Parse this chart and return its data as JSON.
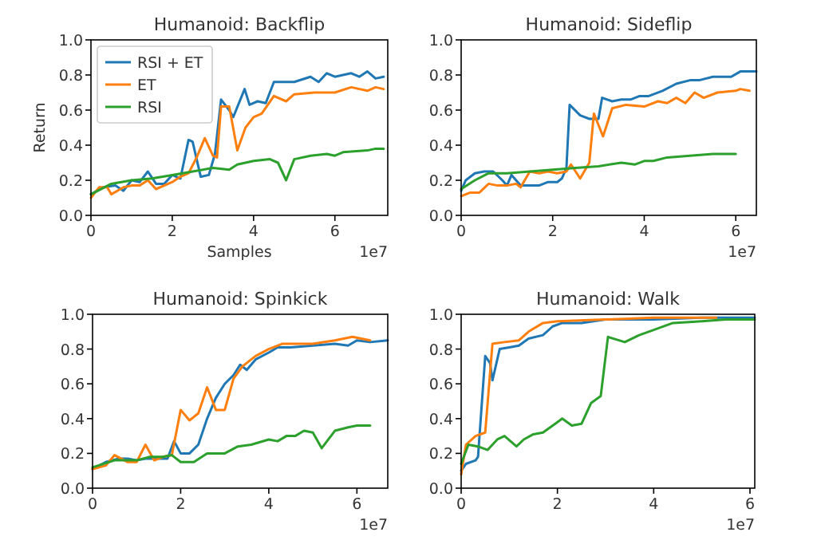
{
  "chart_data": [
    {
      "type": "line",
      "title": "Humanoid: Backflip",
      "xlabel": "Samples",
      "ylabel": "Return",
      "xlim": [
        0,
        7.3
      ],
      "xticks": [
        0,
        2,
        4,
        6
      ],
      "ylim": [
        0,
        1
      ],
      "yticks": [
        {
          "value": 0,
          "label": "0.0"
        },
        {
          "value": 0.2,
          "label": "0.2"
        },
        {
          "value": 0.4,
          "label": "0.4"
        },
        {
          "value": 0.6,
          "label": "0.6"
        },
        {
          "value": 0.8,
          "label": "0.8"
        },
        {
          "value": 1,
          "label": "1.0"
        }
      ],
      "grid": false,
      "legend": "top left",
      "annotations": [
        "1e7"
      ],
      "series": [
        {
          "name": "RSI + ET",
          "color": "#1f77b4",
          "x": [
            0,
            0.3,
            0.6,
            0.8,
            1.0,
            1.2,
            1.4,
            1.6,
            1.8,
            2.0,
            2.2,
            2.4,
            2.5,
            2.7,
            2.9,
            3.05,
            3.2,
            3.4,
            3.5,
            3.78,
            3.9,
            4.1,
            4.3,
            4.5,
            5.0,
            5.4,
            5.6,
            5.8,
            6.0,
            6.4,
            6.6,
            6.8,
            7.0,
            7.2
          ],
          "values": [
            0.12,
            0.16,
            0.17,
            0.14,
            0.2,
            0.19,
            0.25,
            0.18,
            0.18,
            0.23,
            0.21,
            0.43,
            0.42,
            0.22,
            0.23,
            0.35,
            0.66,
            0.6,
            0.56,
            0.72,
            0.63,
            0.65,
            0.64,
            0.76,
            0.76,
            0.79,
            0.76,
            0.81,
            0.79,
            0.81,
            0.79,
            0.82,
            0.78,
            0.79
          ]
        },
        {
          "name": "ET",
          "color": "#ff7f0e",
          "x": [
            0,
            0.2,
            0.4,
            0.5,
            0.8,
            1.0,
            1.2,
            1.4,
            1.6,
            1.8,
            2.0,
            2.2,
            2.4,
            2.6,
            2.8,
            3.0,
            3.1,
            3.2,
            3.4,
            3.6,
            3.8,
            4.0,
            4.2,
            4.5,
            4.8,
            5.0,
            5.5,
            6.0,
            6.4,
            6.8,
            7.0,
            7.2
          ],
          "values": [
            0.1,
            0.16,
            0.16,
            0.12,
            0.16,
            0.17,
            0.17,
            0.2,
            0.15,
            0.17,
            0.19,
            0.22,
            0.24,
            0.33,
            0.44,
            0.34,
            0.33,
            0.62,
            0.62,
            0.37,
            0.5,
            0.56,
            0.58,
            0.68,
            0.65,
            0.69,
            0.7,
            0.7,
            0.73,
            0.71,
            0.73,
            0.72
          ]
        },
        {
          "name": "RSI",
          "color": "#2ca02c",
          "x": [
            0,
            0.5,
            1,
            1.5,
            2,
            2.5,
            3,
            3.4,
            3.6,
            4,
            4.4,
            4.6,
            4.8,
            5.0,
            5.4,
            5.8,
            6.0,
            6.2,
            6.8,
            7.0,
            7.2
          ],
          "values": [
            0.12,
            0.18,
            0.2,
            0.21,
            0.23,
            0.25,
            0.27,
            0.26,
            0.29,
            0.31,
            0.32,
            0.3,
            0.2,
            0.32,
            0.34,
            0.35,
            0.34,
            0.36,
            0.37,
            0.38,
            0.38
          ]
        }
      ]
    },
    {
      "type": "line",
      "title": "Humanoid: Sideflip",
      "xlim": [
        0,
        6.45
      ],
      "xticks": [
        0,
        2,
        4,
        6
      ],
      "ylim": [
        0,
        1
      ],
      "yticks": [
        {
          "value": 0,
          "label": "0.0"
        },
        {
          "value": 0.2,
          "label": "0.2"
        },
        {
          "value": 0.4,
          "label": "0.4"
        },
        {
          "value": 0.6,
          "label": "0.6"
        },
        {
          "value": 0.8,
          "label": "0.8"
        },
        {
          "value": 1,
          "label": "1.0"
        }
      ],
      "grid": false,
      "legend": false,
      "annotations": [
        "1e7"
      ],
      "series": [
        {
          "color": "#1f77b4",
          "x": [
            0,
            0.1,
            0.3,
            0.5,
            0.7,
            0.9,
            1.0,
            1.1,
            1.3,
            1.5,
            1.7,
            1.9,
            2.1,
            2.2,
            2.3,
            2.37,
            2.6,
            2.8,
            3.0,
            3.08,
            3.3,
            3.5,
            3.7,
            3.9,
            4.1,
            4.4,
            4.7,
            5.0,
            5.2,
            5.5,
            5.9,
            6.1,
            6.45
          ],
          "values": [
            0.14,
            0.2,
            0.24,
            0.25,
            0.25,
            0.2,
            0.17,
            0.23,
            0.17,
            0.17,
            0.17,
            0.19,
            0.19,
            0.21,
            0.27,
            0.63,
            0.57,
            0.55,
            0.55,
            0.67,
            0.65,
            0.66,
            0.66,
            0.68,
            0.68,
            0.71,
            0.75,
            0.77,
            0.77,
            0.79,
            0.79,
            0.82,
            0.82
          ]
        },
        {
          "color": "#ff7f0e",
          "x": [
            0,
            0.2,
            0.4,
            0.6,
            0.8,
            1.0,
            1.2,
            1.3,
            1.5,
            1.7,
            1.9,
            2.1,
            2.3,
            2.4,
            2.6,
            2.8,
            2.9,
            3.1,
            3.3,
            3.6,
            4.0,
            4.3,
            4.5,
            4.7,
            4.9,
            5.1,
            5.3,
            5.6,
            6.0,
            6.1,
            6.3
          ],
          "values": [
            0.11,
            0.13,
            0.13,
            0.18,
            0.17,
            0.17,
            0.18,
            0.16,
            0.25,
            0.24,
            0.25,
            0.24,
            0.25,
            0.29,
            0.21,
            0.3,
            0.58,
            0.45,
            0.61,
            0.63,
            0.62,
            0.65,
            0.64,
            0.67,
            0.64,
            0.7,
            0.67,
            0.7,
            0.71,
            0.72,
            0.71
          ]
        },
        {
          "color": "#2ca02c",
          "x": [
            0,
            0.3,
            0.6,
            1,
            1.5,
            2,
            2.5,
            3,
            3.5,
            3.8,
            4.0,
            4.2,
            4.5,
            5,
            5.5,
            6.0
          ],
          "values": [
            0.15,
            0.2,
            0.24,
            0.24,
            0.25,
            0.26,
            0.27,
            0.28,
            0.3,
            0.29,
            0.31,
            0.31,
            0.33,
            0.34,
            0.35,
            0.35
          ]
        }
      ]
    },
    {
      "type": "line",
      "title": "Humanoid: Spinkick",
      "xlim": [
        0,
        6.7
      ],
      "xticks": [
        0,
        2,
        4,
        6
      ],
      "ylim": [
        0,
        1
      ],
      "yticks": [
        {
          "value": 0,
          "label": "0.0"
        },
        {
          "value": 0.2,
          "label": "0.2"
        },
        {
          "value": 0.4,
          "label": "0.4"
        },
        {
          "value": 0.6,
          "label": "0.6"
        },
        {
          "value": 0.8,
          "label": "0.8"
        },
        {
          "value": 1,
          "label": "1.0"
        }
      ],
      "grid": false,
      "legend": false,
      "annotations": [
        "1e7"
      ],
      "series": [
        {
          "color": "#1f77b4",
          "x": [
            0,
            0.3,
            0.6,
            0.8,
            1.0,
            1.2,
            1.5,
            1.7,
            1.85,
            2.0,
            2.2,
            2.4,
            2.6,
            2.8,
            3.0,
            3.2,
            3.35,
            3.5,
            3.7,
            4.0,
            4.2,
            4.5,
            5.0,
            5.5,
            5.8,
            6.0,
            6.3,
            6.7
          ],
          "values": [
            0.11,
            0.15,
            0.17,
            0.17,
            0.16,
            0.17,
            0.17,
            0.17,
            0.27,
            0.2,
            0.2,
            0.25,
            0.4,
            0.52,
            0.6,
            0.65,
            0.71,
            0.68,
            0.74,
            0.78,
            0.81,
            0.81,
            0.82,
            0.83,
            0.82,
            0.85,
            0.84,
            0.85
          ]
        },
        {
          "color": "#ff7f0e",
          "x": [
            0,
            0.3,
            0.5,
            0.8,
            1.0,
            1.2,
            1.4,
            1.6,
            1.8,
            2.0,
            2.2,
            2.4,
            2.6,
            2.8,
            3.0,
            3.2,
            3.4,
            3.7,
            4.0,
            4.3,
            4.6,
            5.0,
            5.5,
            5.9,
            6.3
          ],
          "values": [
            0.11,
            0.13,
            0.19,
            0.15,
            0.15,
            0.25,
            0.16,
            0.18,
            0.19,
            0.45,
            0.39,
            0.43,
            0.58,
            0.45,
            0.45,
            0.63,
            0.7,
            0.76,
            0.8,
            0.83,
            0.83,
            0.83,
            0.85,
            0.87,
            0.85
          ]
        },
        {
          "color": "#2ca02c",
          "x": [
            0,
            0.5,
            1.0,
            1.3,
            1.6,
            1.8,
            2.0,
            2.3,
            2.6,
            3.0,
            3.3,
            3.6,
            4.0,
            4.2,
            4.4,
            4.6,
            4.8,
            5.0,
            5.2,
            5.5,
            5.8,
            6.0,
            6.3
          ],
          "values": [
            0.12,
            0.16,
            0.16,
            0.18,
            0.18,
            0.19,
            0.15,
            0.15,
            0.2,
            0.2,
            0.24,
            0.25,
            0.28,
            0.27,
            0.3,
            0.3,
            0.33,
            0.32,
            0.23,
            0.33,
            0.35,
            0.36,
            0.36
          ]
        }
      ]
    },
    {
      "type": "line",
      "title": "Humanoid: Walk",
      "xlim": [
        0,
        6.1
      ],
      "xticks": [
        0,
        2,
        4,
        6
      ],
      "ylim": [
        0,
        1
      ],
      "yticks": [
        {
          "value": 0,
          "label": "0.0"
        },
        {
          "value": 0.2,
          "label": "0.2"
        },
        {
          "value": 0.4,
          "label": "0.4"
        },
        {
          "value": 0.6,
          "label": "0.6"
        },
        {
          "value": 0.8,
          "label": "0.8"
        },
        {
          "value": 1,
          "label": "1.0"
        }
      ],
      "grid": false,
      "legend": false,
      "annotations": [
        "1e7"
      ],
      "series": [
        {
          "color": "#1f77b4",
          "x": [
            0,
            0.1,
            0.3,
            0.35,
            0.5,
            0.6,
            0.65,
            0.8,
            1.0,
            1.2,
            1.4,
            1.7,
            1.9,
            2.1,
            2.5,
            3.0,
            4.0,
            5.0,
            6.1
          ],
          "values": [
            0.1,
            0.14,
            0.16,
            0.18,
            0.76,
            0.72,
            0.62,
            0.8,
            0.81,
            0.82,
            0.86,
            0.88,
            0.93,
            0.95,
            0.95,
            0.97,
            0.97,
            0.98,
            0.98
          ]
        },
        {
          "color": "#ff7f0e",
          "x": [
            0,
            0.1,
            0.3,
            0.5,
            0.65,
            0.9,
            1.2,
            1.4,
            1.7,
            2.0,
            3.0,
            4.0,
            5.3
          ],
          "values": [
            0.08,
            0.25,
            0.3,
            0.32,
            0.83,
            0.84,
            0.85,
            0.9,
            0.95,
            0.96,
            0.97,
            0.98,
            0.98
          ]
        },
        {
          "color": "#2ca02c",
          "x": [
            0,
            0.15,
            0.35,
            0.55,
            0.75,
            0.9,
            1.15,
            1.3,
            1.5,
            1.7,
            2.0,
            2.1,
            2.3,
            2.5,
            2.7,
            2.9,
            3.05,
            3.4,
            3.7,
            4.0,
            4.4,
            5.0,
            5.5,
            6.1
          ],
          "values": [
            0.14,
            0.25,
            0.24,
            0.22,
            0.28,
            0.3,
            0.24,
            0.28,
            0.31,
            0.32,
            0.38,
            0.4,
            0.36,
            0.37,
            0.49,
            0.53,
            0.87,
            0.84,
            0.88,
            0.91,
            0.95,
            0.96,
            0.97,
            0.97
          ]
        }
      ]
    }
  ]
}
